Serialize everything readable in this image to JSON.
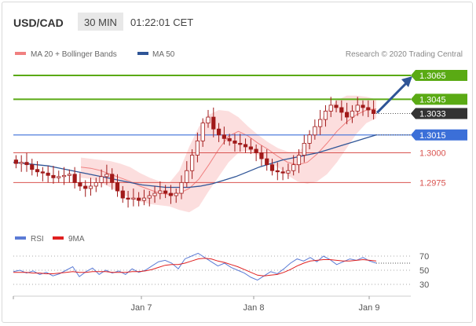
{
  "header": {
    "symbol": "USD/CAD",
    "timeframe": "30 MIN",
    "time": "01:22:01 CET"
  },
  "legend": {
    "items": [
      {
        "label": "MA 20 + Bollinger Bands",
        "color": "#f08080"
      },
      {
        "label": "MA 50",
        "color": "#2f5597"
      }
    ],
    "credit": "Research © 2020 Trading Central"
  },
  "rsi_legend": {
    "items": [
      {
        "label": "RSI",
        "color": "#5b7bd5"
      },
      {
        "label": "9MA",
        "color": "#e02020"
      }
    ]
  },
  "colors": {
    "green_level": "#5aaa14",
    "blue_level": "#3b6fd8",
    "red_level": "#d9534f",
    "current_price_bg": "#333333",
    "arrow": "#2f5597",
    "candle": "#a11a1a",
    "band_fill": "#fbd3d3"
  },
  "chart_data": [
    {
      "type": "candlestick",
      "title": "USD/CAD 30 MIN",
      "y_range": [
        1.2935,
        1.31
      ],
      "x_ticks": [
        "Jan 7",
        "Jan 8",
        "Jan 9"
      ],
      "levels": [
        {
          "value": 1.3065,
          "label": "1.3065",
          "style": "resistance-green"
        },
        {
          "value": 1.3045,
          "label": "1.3045",
          "style": "resistance-green"
        },
        {
          "value": 1.3033,
          "label": "1.3033",
          "style": "current-price"
        },
        {
          "value": 1.3015,
          "label": "1.3015",
          "style": "pivot-blue"
        },
        {
          "value": 1.3,
          "label": "1.3000",
          "style": "support-red"
        },
        {
          "value": 1.2975,
          "label": "1.2975",
          "style": "support-red"
        }
      ],
      "candle_closes": [
        1.2991,
        1.2992,
        1.299,
        1.2986,
        1.2984,
        1.2983,
        1.2981,
        1.2979,
        1.298,
        1.2981,
        1.2982,
        1.2975,
        1.2972,
        1.297,
        1.2972,
        1.2975,
        1.298,
        1.2982,
        1.2975,
        1.2968,
        1.2962,
        1.2961,
        1.2962,
        1.296,
        1.2962,
        1.2964,
        1.2966,
        1.2968,
        1.2966,
        1.2964,
        1.2966,
        1.2975,
        1.2985,
        1.2998,
        1.301,
        1.3025,
        1.303,
        1.302,
        1.3015,
        1.3012,
        1.301,
        1.3008,
        1.3007,
        1.3005,
        1.3003,
        1.3,
        1.2995,
        1.299,
        1.2985,
        1.2984,
        1.2983,
        1.2985,
        1.299,
        1.2998,
        1.3008,
        1.3015,
        1.3022,
        1.3028,
        1.3035,
        1.304,
        1.3038,
        1.3034,
        1.303,
        1.3035,
        1.304,
        1.3038,
        1.3036,
        1.3033
      ],
      "ma50": [
        1.2992,
        1.2991,
        1.299,
        1.2989,
        1.2987,
        1.2985,
        1.2983,
        1.2981,
        1.2979,
        1.2977,
        1.2975,
        1.2973,
        1.2972,
        1.2971,
        1.2971,
        1.2971,
        1.2972,
        1.2974,
        1.2977,
        1.298,
        1.2984,
        1.2988,
        1.2991,
        1.2994,
        1.2996,
        1.2998,
        1.3,
        1.3003,
        1.3006,
        1.3009,
        1.3012,
        1.3015
      ],
      "bollinger": {
        "middle": [
          1.2988,
          1.2987,
          1.2985,
          1.2982,
          1.2979,
          1.2976,
          1.2972,
          1.2969,
          1.2966,
          1.2965,
          1.2966,
          1.297,
          1.2978,
          1.299,
          1.3003,
          1.3014,
          1.3018,
          1.3014,
          1.3008,
          1.3003,
          1.2997,
          1.2992,
          1.299,
          1.2992,
          1.2999,
          1.3008,
          1.3018,
          1.3026,
          1.3032,
          1.3036,
          1.3037
        ],
        "upper": [
          1.2996,
          1.2995,
          1.2994,
          1.2993,
          1.2991,
          1.2988,
          1.2983,
          1.2979,
          1.2976,
          1.2975,
          1.2985,
          1.3005,
          1.3022,
          1.3032,
          1.3036,
          1.3035,
          1.303,
          1.3022,
          1.3015,
          1.3009,
          1.3004,
          1.3001,
          1.3,
          1.3008,
          1.3022,
          1.3036,
          1.3044,
          1.3048,
          1.3048,
          1.3047,
          1.3045
        ],
        "lower": [
          1.2979,
          1.2978,
          1.2975,
          1.2971,
          1.2966,
          1.2962,
          1.2959,
          1.2957,
          1.2956,
          1.2955,
          1.2952,
          1.295,
          1.2955,
          1.2968,
          1.298,
          1.2992,
          1.3,
          1.3002,
          1.2998,
          1.2993,
          1.2988,
          1.2981,
          1.2976,
          1.2974,
          1.2976,
          1.2982,
          1.2992,
          1.3004,
          1.3016,
          1.3025,
          1.3029
        ]
      }
    },
    {
      "type": "line",
      "title": "RSI",
      "y_range": [
        20,
        80
      ],
      "y_ticks": [
        70,
        50,
        30
      ],
      "series": [
        {
          "name": "RSI",
          "values": [
            48,
            50,
            46,
            49,
            44,
            47,
            42,
            45,
            50,
            55,
            41,
            48,
            53,
            44,
            50,
            46,
            49,
            44,
            52,
            47,
            50,
            56,
            62,
            64,
            60,
            52,
            66,
            70,
            74,
            68,
            62,
            56,
            60,
            54,
            50,
            46,
            40,
            36,
            42,
            48,
            45,
            52,
            60,
            66,
            63,
            68,
            62,
            70,
            65,
            58,
            62,
            66,
            64,
            68,
            63,
            60
          ]
        },
        {
          "name": "9MA",
          "values": [
            47,
            47,
            47,
            46,
            46,
            45,
            45,
            46,
            47,
            48,
            47,
            47,
            48,
            48,
            48,
            47,
            47,
            47,
            48,
            48,
            49,
            51,
            54,
            57,
            58,
            58,
            60,
            63,
            66,
            67,
            66,
            63,
            61,
            58,
            55,
            51,
            47,
            43,
            42,
            43,
            44,
            47,
            51,
            56,
            60,
            63,
            64,
            65,
            65,
            64,
            63,
            63,
            64,
            65,
            64,
            63
          ]
        }
      ]
    }
  ]
}
